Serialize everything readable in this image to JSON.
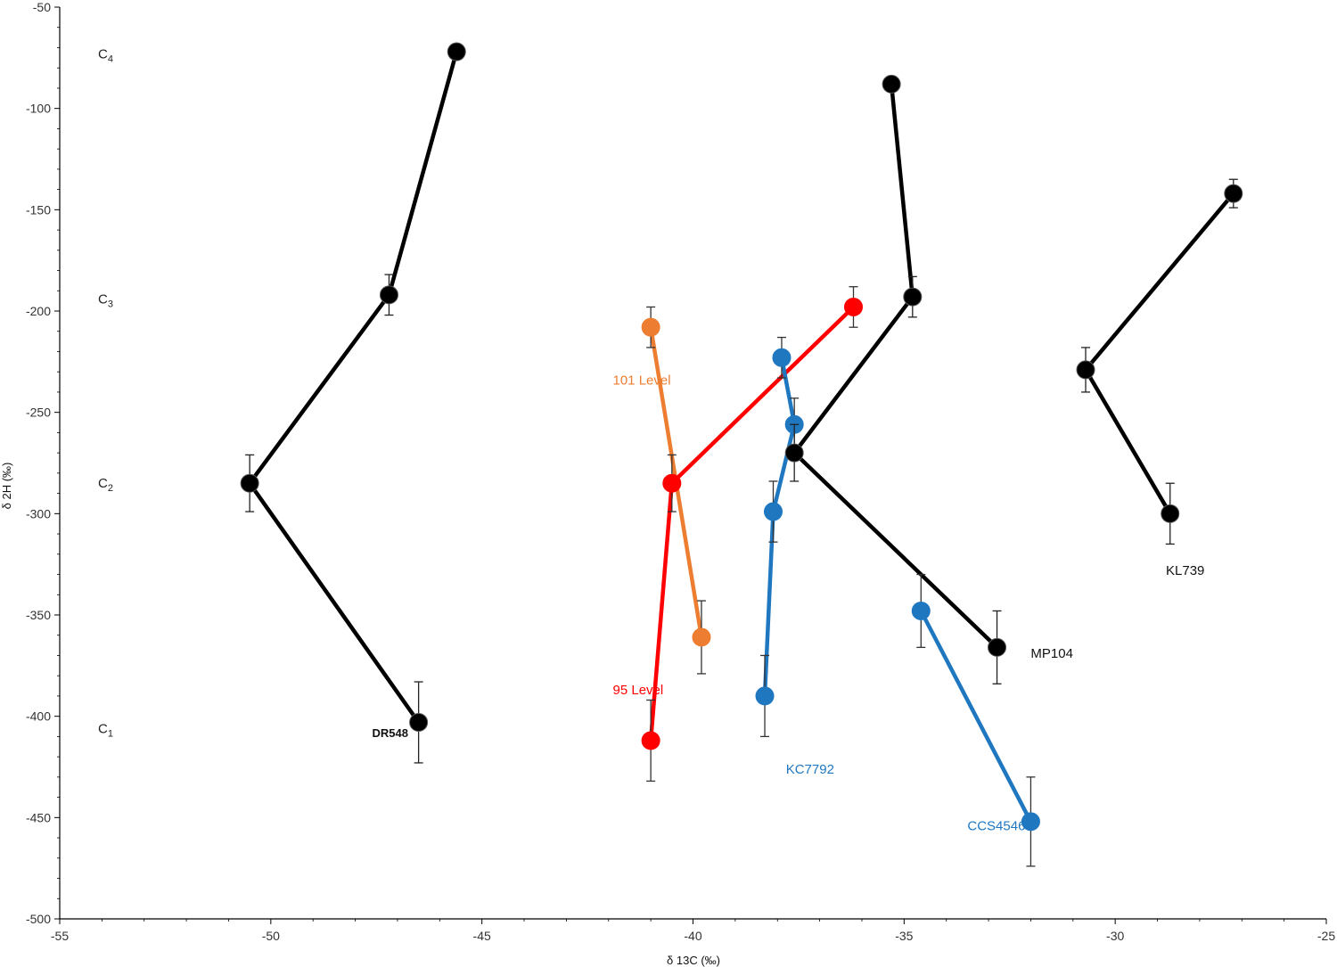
{
  "chart_data": {
    "type": "scatter",
    "title": "",
    "xlabel": "δ 13C (‰)",
    "ylabel": "δ 2H (‰)",
    "xlim": [
      -55,
      -25
    ],
    "ylim": [
      -500,
      -50
    ],
    "xticks": [
      -55,
      -50,
      -45,
      -40,
      -35,
      -30,
      -25
    ],
    "yticks": [
      -50,
      -100,
      -150,
      -200,
      -250,
      -300,
      -350,
      -400,
      -450,
      -500
    ],
    "xtick_labels": [
      "-55",
      "-50",
      "-45",
      "-40",
      "-35",
      "-30",
      "-25"
    ],
    "ytick_labels": [
      "-50",
      "-100",
      "-150",
      "-200",
      "-250",
      "-300",
      "-350",
      "-400",
      "-450",
      "-500"
    ],
    "grid": false,
    "carbon_levels": [
      {
        "main": "C",
        "sub": "4",
        "y": -73
      },
      {
        "main": "C",
        "sub": "3",
        "y": -194
      },
      {
        "main": "C",
        "sub": "2",
        "y": -285
      },
      {
        "main": "C",
        "sub": "1",
        "y": -406
      }
    ],
    "series": [
      {
        "name": "DR548",
        "color": "#000000",
        "points": [
          {
            "x": -46.5,
            "y": -403,
            "err": 20
          },
          {
            "x": -50.5,
            "y": -285,
            "err": 14
          },
          {
            "x": -47.2,
            "y": -192,
            "err": 10
          },
          {
            "x": -45.6,
            "y": -72,
            "err": 0
          }
        ],
        "label": {
          "text": "DR548",
          "x": -47.6,
          "y": -408,
          "class": "annot-sm"
        }
      },
      {
        "name": "101 Level",
        "color": "#ED7D31",
        "points": [
          {
            "x": -39.8,
            "y": -361,
            "err": 18
          },
          {
            "x": -41.0,
            "y": -208,
            "err": 10
          }
        ],
        "label": {
          "text": "101 Level",
          "x": -41.9,
          "y": -234,
          "class": "annot"
        }
      },
      {
        "name": "95 Level",
        "color": "#FF0000",
        "points": [
          {
            "x": -41.0,
            "y": -412,
            "err": 20
          },
          {
            "x": -40.5,
            "y": -285,
            "err": 14
          },
          {
            "x": -36.2,
            "y": -198,
            "err": 10
          }
        ],
        "label": {
          "text": "95 Level",
          "x": -41.9,
          "y": -387,
          "class": "annot"
        }
      },
      {
        "name": "KC7792",
        "color": "#1F77C0",
        "points": [
          {
            "x": -38.3,
            "y": -390,
            "err": 20
          },
          {
            "x": -38.1,
            "y": -299,
            "err": 15
          },
          {
            "x": -37.6,
            "y": -256,
            "err": 13
          },
          {
            "x": -37.9,
            "y": -223,
            "err": 10
          }
        ],
        "label": {
          "text": "KC7792",
          "x": -37.8,
          "y": -426,
          "class": "annot"
        }
      },
      {
        "name": "MP104",
        "color": "#000000",
        "points": [
          {
            "x": -32.8,
            "y": -366,
            "err": 18
          },
          {
            "x": -37.6,
            "y": -270,
            "err": 14
          },
          {
            "x": -34.8,
            "y": -193,
            "err": 10
          },
          {
            "x": -35.3,
            "y": -88,
            "err": 0
          }
        ],
        "label": {
          "text": "MP104",
          "x": -32.0,
          "y": -369,
          "class": "annot"
        }
      },
      {
        "name": "CCS4546",
        "color": "#1F77C0",
        "points": [
          {
            "x": -32.0,
            "y": -452,
            "err": 22
          },
          {
            "x": -34.6,
            "y": -348,
            "err": 18
          }
        ],
        "label": {
          "text": "CCS4546",
          "x": -33.5,
          "y": -454,
          "class": "annot"
        }
      },
      {
        "name": "KL739",
        "color": "#000000",
        "points": [
          {
            "x": -28.7,
            "y": -300,
            "err": 15
          },
          {
            "x": -30.7,
            "y": -229,
            "err": 11
          },
          {
            "x": -27.2,
            "y": -142,
            "err": 7
          }
        ],
        "label": {
          "text": "KL739",
          "x": -28.8,
          "y": -328,
          "class": "annot"
        }
      }
    ]
  }
}
